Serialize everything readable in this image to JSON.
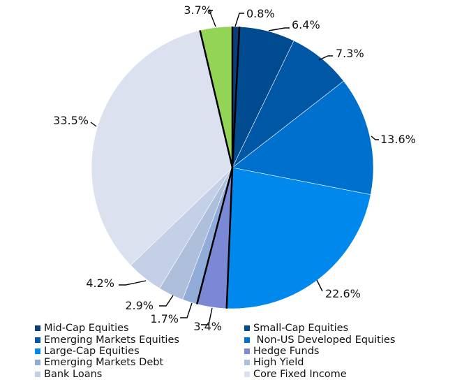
{
  "chart_data": {
    "type": "pie",
    "title": "",
    "legend_position": "bottom",
    "series": [
      {
        "name": "Mid-Cap Equities",
        "label": "0.8%",
        "value": 0.8,
        "color": "#0a3d7a"
      },
      {
        "name": "Small-Cap Equities",
        "label": "6.4%",
        "value": 6.4,
        "color": "#004a8f"
      },
      {
        "name": "Emerging Markets Equities",
        "label": "7.3%",
        "value": 7.3,
        "color": "#0057a6"
      },
      {
        "name": "Non-US Developed Equities",
        "legend_text": " Non-US Developed Equities",
        "label": "13.6%",
        "value": 13.6,
        "color": "#0070cf"
      },
      {
        "name": "Large-Cap Equities",
        "label": "22.6%",
        "value": 22.6,
        "color": "#0088ec"
      },
      {
        "name": "Hedge Funds",
        "label": "3.4%",
        "value": 3.4,
        "color": "#7b88d6"
      },
      {
        "name": "Emerging Markets Debt",
        "label": "1.7%",
        "value": 1.7,
        "color": "#91acd8"
      },
      {
        "name": "High Yield",
        "label": "2.9%",
        "value": 2.9,
        "color": "#aebfdc"
      },
      {
        "name": "Bank Loans",
        "label": "4.2%",
        "value": 4.2,
        "color": "#c4d0e8"
      },
      {
        "name": "Core Fixed Income",
        "label": "33.5%",
        "value": 33.5,
        "color": "#dbe1ef"
      },
      {
        "name": "",
        "label": "3.7%",
        "value": 3.7,
        "color": "#93d456"
      }
    ]
  }
}
